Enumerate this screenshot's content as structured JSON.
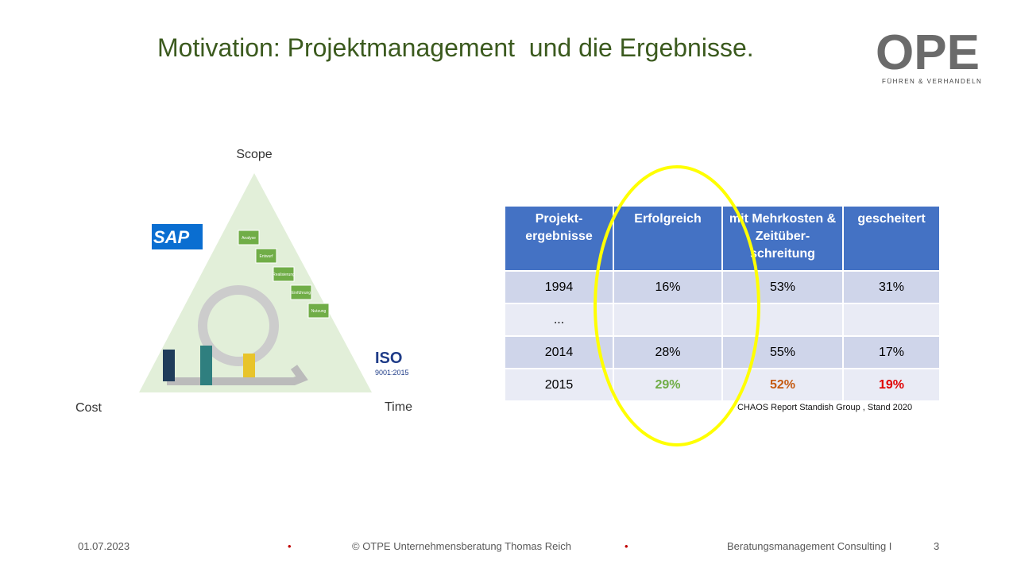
{
  "header": {
    "title": "Motivation: Projektmanagement  und die Ergebnisse.",
    "logo": "OPE",
    "logo_tagline": "FÜHREN & VERHANDELN"
  },
  "triangle": {
    "top": "Scope",
    "left": "Cost",
    "right": "Time",
    "sap": "SAP",
    "iso": "ISO",
    "iso_sub": "9001:2015",
    "steps": [
      "Analyse",
      "Entwurf",
      "Realisierung",
      "Einführung",
      "Nutzung"
    ]
  },
  "table": {
    "header": [
      "Projekt-ergebnisse",
      "Erfolgreich",
      "mit Mehrkosten & Zeitüber-schreitung",
      "gescheitert"
    ],
    "rows": [
      [
        "1994",
        "16%",
        "53%",
        "31%"
      ],
      [
        "...",
        "",
        "",
        ""
      ],
      [
        "2014",
        "28%",
        "55%",
        "17%"
      ],
      [
        "2015",
        "29%",
        "52%",
        "19%"
      ]
    ]
  },
  "source": "CHAOS Report Standish Group , Stand 2020",
  "footer": {
    "date": "01.07.2023",
    "copyright": "© OTPE Unternehmensberatung  Thomas Reich",
    "right": "Beratungsmanagement Consulting I",
    "page": "3"
  }
}
